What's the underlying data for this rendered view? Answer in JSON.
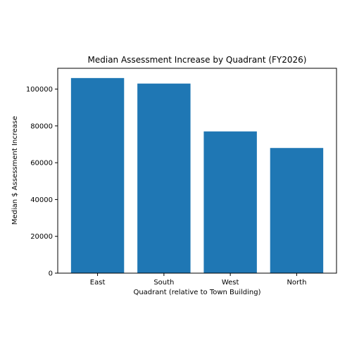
{
  "chart_data": {
    "type": "bar",
    "title": "Median Assessment Increase by Quadrant (FY2026)",
    "xlabel": "Quadrant (relative to Town Building)",
    "ylabel": "Median $ Assessment Increase",
    "categories": [
      "East",
      "South",
      "West",
      "North"
    ],
    "values": [
      106000,
      103000,
      77000,
      68000
    ],
    "ylim": [
      0,
      111300
    ],
    "yticks": [
      0,
      20000,
      40000,
      60000,
      80000,
      100000
    ],
    "grid": false,
    "legend": "none",
    "bar_color": "#1f77b4"
  }
}
